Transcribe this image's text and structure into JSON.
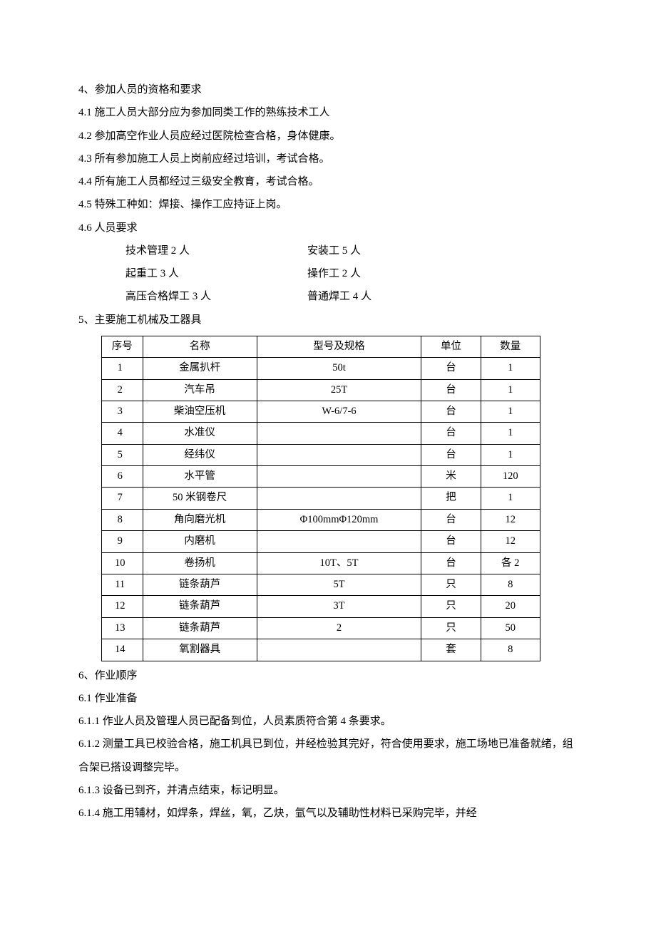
{
  "section4": {
    "heading": "4、参加人员的资格和要求",
    "items": [
      "4.1 施工人员大部分应为参加同类工作的熟练技术工人",
      "4.2 参加高空作业人员应经过医院检查合格，身体健康。",
      "4.3 所有参加施工人员上岗前应经过培训，考试合格。",
      "4.4 所有施工人员都经过三级安全教育，考试合格。",
      "4.5 特殊工种如：焊接、操作工应持证上岗。",
      "4.6 人员要求"
    ],
    "personnel": [
      {
        "left": "技术管理 2 人",
        "right": "安装工 5 人"
      },
      {
        "left": "起重工 3 人",
        "right": "操作工 2 人"
      },
      {
        "left": "高压合格焊工 3 人",
        "right": "普通焊工 4 人"
      }
    ]
  },
  "section5": {
    "heading": "5、主要施工机械及工器具",
    "table": {
      "columns": [
        "序号",
        "名称",
        "型号及规格",
        "单位",
        "数量"
      ],
      "col_widths_pct": [
        9,
        25,
        36,
        13,
        13
      ],
      "border_color": "#000000",
      "background_color": "#ffffff",
      "font_size_pt": 11,
      "rows": [
        [
          "1",
          "金属扒杆",
          "50t",
          "台",
          "1"
        ],
        [
          "2",
          "汽车吊",
          "25T",
          "台",
          "1"
        ],
        [
          "3",
          "柴油空压机",
          "W-6/7-6",
          "台",
          "1"
        ],
        [
          "4",
          "水准仪",
          "",
          "台",
          "1"
        ],
        [
          "5",
          "经纬仪",
          "",
          "台",
          "1"
        ],
        [
          "6",
          "水平管",
          "",
          "米",
          "120"
        ],
        [
          "7",
          "50 米钢卷尺",
          "",
          "把",
          "1"
        ],
        [
          "8",
          "角向磨光机",
          "Φ100mmΦ120mm",
          "台",
          "12"
        ],
        [
          "9",
          "内磨机",
          "",
          "台",
          "12"
        ],
        [
          "10",
          "卷扬机",
          "10T、5T",
          "台",
          "各 2"
        ],
        [
          "11",
          "链条葫芦",
          "5T",
          "只",
          "8"
        ],
        [
          "12",
          "链条葫芦",
          "3T",
          "只",
          "20"
        ],
        [
          "13",
          "链条葫芦",
          "2",
          "只",
          "50"
        ],
        [
          "14",
          "氧割器具",
          "",
          "套",
          "8"
        ]
      ]
    }
  },
  "section6": {
    "heading": "6、作业顺序",
    "items": [
      "6.1 作业准备",
      "6.1.1 作业人员及管理人员已配备到位，人员素质符合第 4 条要求。",
      "6.1.2 测量工具已校验合格，施工机具已到位，并经检验其完好，符合使用要求，施工场地已准备就绪，组合架已搭设调整完毕。",
      "6.1.3 设备已到齐，并清点结束，标记明显。",
      "6.1.4 施工用辅材，如焊条，焊丝，氧，乙炔，氩气以及辅助性材料已采购完毕，并经"
    ]
  }
}
